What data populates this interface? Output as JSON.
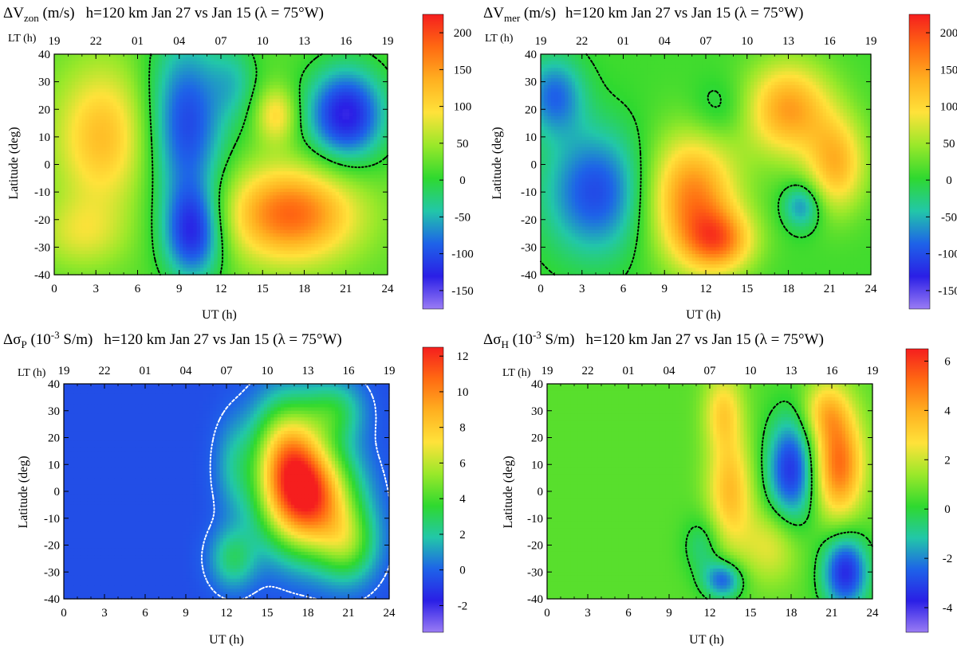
{
  "colors": {
    "colormap": [
      "#9a7cf4",
      "#2a1fe6",
      "#1e63e8",
      "#22c7a8",
      "#2fd92f",
      "#9ae82a",
      "#ffe23a",
      "#ffb020",
      "#ff6a12",
      "#f51e1e"
    ],
    "contour_dark": "#000000",
    "contour_light": "#ffffff"
  },
  "chart_data": [
    {
      "id": "dvzon",
      "type": "heatmap",
      "title": {
        "pre": "ΔV",
        "sub": "zon",
        "post": " (m/s)",
        "rest": "h=120 km    Jan 27 vs Jan 15 (λ = 75°W)"
      },
      "xlabel": "UT (h)",
      "ylabel": "Latitude (deg)",
      "lt_label": "LT (h)",
      "x_ticks": [
        "0",
        "3",
        "6",
        "9",
        "12",
        "15",
        "18",
        "21",
        "24"
      ],
      "y_ticks": [
        "-40",
        "-30",
        "-20",
        "-10",
        "0",
        "10",
        "20",
        "30",
        "40"
      ],
      "lt_ticks": [
        "19",
        "22",
        "01",
        "04",
        "07",
        "10",
        "13",
        "16",
        "19"
      ],
      "xlim": [
        0,
        24
      ],
      "ylim": [
        -40,
        40
      ],
      "colorbar": {
        "range": [
          -175,
          225
        ],
        "ticks": [
          "-150",
          "-100",
          "-50",
          "0",
          "50",
          "100",
          "150",
          "200"
        ],
        "tick_values": [
          -150,
          -100,
          -50,
          0,
          50,
          100,
          150,
          200
        ]
      },
      "contour_style": "dark",
      "background_value": 20,
      "blobs": [
        {
          "ut": 3.5,
          "lat": 10,
          "sx": 2.4,
          "sy": 18,
          "v": 110
        },
        {
          "ut": 2.0,
          "lat": -25,
          "sx": 2.2,
          "sy": 9,
          "v": 60
        },
        {
          "ut": 9.5,
          "lat": 15,
          "sx": 2.0,
          "sy": 22,
          "v": -120
        },
        {
          "ut": 10.0,
          "lat": -25,
          "sx": 1.5,
          "sy": 12,
          "v": -130
        },
        {
          "ut": 17.0,
          "lat": -18,
          "sx": 3.3,
          "sy": 12,
          "v": 170
        },
        {
          "ut": 16.0,
          "lat": 18,
          "sx": 1.0,
          "sy": 7,
          "v": 90
        },
        {
          "ut": 21.0,
          "lat": 18,
          "sx": 2.0,
          "sy": 12,
          "v": -150
        },
        {
          "ut": 13.0,
          "lat": 30,
          "sx": 1.2,
          "sy": 10,
          "v": -40
        }
      ],
      "contour_level": 0
    },
    {
      "id": "dvmer",
      "type": "heatmap",
      "title": {
        "pre": "ΔV",
        "sub": "mer",
        "post": " (m/s)",
        "rest": "h=120 km    Jan 27 vs Jan 15 (λ = 75°W)"
      },
      "xlabel": "UT (h)",
      "ylabel": "Latitude (deg)",
      "lt_label": "LT (h)",
      "x_ticks": [
        "0",
        "3",
        "6",
        "9",
        "12",
        "15",
        "18",
        "21",
        "24"
      ],
      "y_ticks": [
        "-40",
        "-30",
        "-20",
        "-10",
        "0",
        "10",
        "20",
        "30",
        "40"
      ],
      "lt_ticks": [
        "19",
        "22",
        "01",
        "04",
        "07",
        "10",
        "13",
        "16",
        "19"
      ],
      "xlim": [
        0,
        24
      ],
      "ylim": [
        -40,
        40
      ],
      "colorbar": {
        "range": [
          -175,
          225
        ],
        "ticks": [
          "-150",
          "-100",
          "-50",
          "0",
          "50",
          "100",
          "150",
          "200"
        ],
        "tick_values": [
          -150,
          -100,
          -50,
          0,
          50,
          100,
          150,
          200
        ]
      },
      "contour_style": "dark",
      "background_value": 10,
      "blobs": [
        {
          "ut": 4.0,
          "lat": -10,
          "sx": 2.6,
          "sy": 16,
          "v": -110
        },
        {
          "ut": 1.0,
          "lat": 25,
          "sx": 1.5,
          "sy": 10,
          "v": -90
        },
        {
          "ut": 11.0,
          "lat": -12,
          "sx": 2.3,
          "sy": 16,
          "v": 160
        },
        {
          "ut": 13.0,
          "lat": -28,
          "sx": 1.8,
          "sy": 8,
          "v": 130
        },
        {
          "ut": 18.0,
          "lat": 20,
          "sx": 2.2,
          "sy": 12,
          "v": 140
        },
        {
          "ut": 21.5,
          "lat": 0,
          "sx": 1.5,
          "sy": 12,
          "v": 120
        },
        {
          "ut": 19.0,
          "lat": -15,
          "sx": 1.0,
          "sy": 6,
          "v": -80
        },
        {
          "ut": 13.0,
          "lat": 20,
          "sx": 1.5,
          "sy": 8,
          "v": -30
        }
      ],
      "contour_level": 0
    },
    {
      "id": "dsigp",
      "type": "heatmap",
      "title": {
        "pre": "Δσ",
        "sub": "P",
        "post": " (10",
        "sup": "-3",
        "post2": " S/m)",
        "rest": "h=120 km    Jan 27 vs Jan 15 (λ = 75°W)"
      },
      "xlabel": "UT (h)",
      "ylabel": "Latitude (deg)",
      "lt_label": "LT (h)",
      "x_ticks": [
        "0",
        "3",
        "6",
        "9",
        "12",
        "15",
        "18",
        "21",
        "24"
      ],
      "y_ticks": [
        "-40",
        "-30",
        "-20",
        "-10",
        "0",
        "10",
        "20",
        "30",
        "40"
      ],
      "lt_ticks": [
        "19",
        "22",
        "01",
        "04",
        "07",
        "10",
        "13",
        "16",
        "19"
      ],
      "xlim": [
        0,
        24
      ],
      "ylim": [
        -40,
        40
      ],
      "colorbar": {
        "range": [
          -3.5,
          12.5
        ],
        "ticks": [
          "-2",
          "0",
          "2",
          "4",
          "6",
          "8",
          "10",
          "12"
        ],
        "tick_values": [
          -2,
          0,
          2,
          4,
          6,
          8,
          10,
          12
        ]
      },
      "contour_style": "light",
      "background_value": -0.5,
      "blobs": [
        {
          "ut": 18.0,
          "lat": -3,
          "sx": 2.3,
          "sy": 14,
          "v": 11.5
        },
        {
          "ut": 16.5,
          "lat": 15,
          "sx": 1.8,
          "sy": 14,
          "v": 7
        },
        {
          "ut": 21.0,
          "lat": -20,
          "sx": 1.5,
          "sy": 10,
          "v": 4
        },
        {
          "ut": 12.5,
          "lat": -25,
          "sx": 1.2,
          "sy": 8,
          "v": 3
        },
        {
          "ut": 20.0,
          "lat": 30,
          "sx": 1.5,
          "sy": 8,
          "v": 3
        },
        {
          "ut": 12.5,
          "lat": 10,
          "sx": 1.0,
          "sy": 12,
          "v": 1.5
        }
      ],
      "contour_level": 0
    },
    {
      "id": "dsigh",
      "type": "heatmap",
      "title": {
        "pre": "Δσ",
        "sub": "H",
        "post": " (10",
        "sup": "-3",
        "post2": " S/m)",
        "rest": "h=120 km    Jan 27 vs Jan 15 (λ = 75°W)"
      },
      "xlabel": "UT (h)",
      "ylabel": "Latitude (deg)",
      "lt_label": "LT (h)",
      "x_ticks": [
        "0",
        "3",
        "6",
        "9",
        "12",
        "15",
        "18",
        "21",
        "24"
      ],
      "y_ticks": [
        "-40",
        "-30",
        "-20",
        "-10",
        "0",
        "10",
        "20",
        "30",
        "40"
      ],
      "lt_ticks": [
        "19",
        "22",
        "01",
        "04",
        "07",
        "10",
        "13",
        "16",
        "19"
      ],
      "xlim": [
        0,
        24
      ],
      "ylim": [
        -40,
        40
      ],
      "colorbar": {
        "range": [
          -5,
          6.5
        ],
        "ticks": [
          "-4",
          "-2",
          "0",
          "2",
          "4",
          "6"
        ],
        "tick_values": [
          -4,
          -2,
          0,
          2,
          4,
          6
        ]
      },
      "contour_style": "dark",
      "background_value": 0.6,
      "blobs": [
        {
          "ut": 13.5,
          "lat": 0,
          "sx": 1.2,
          "sy": 15,
          "v": 3.2
        },
        {
          "ut": 13.0,
          "lat": 30,
          "sx": 1.0,
          "sy": 10,
          "v": 2.5
        },
        {
          "ut": 18.0,
          "lat": 8,
          "sx": 1.3,
          "sy": 14,
          "v": -3.8
        },
        {
          "ut": 21.5,
          "lat": 10,
          "sx": 1.3,
          "sy": 14,
          "v": 4.8
        },
        {
          "ut": 20.5,
          "lat": 30,
          "sx": 1.2,
          "sy": 8,
          "v": 2.5
        },
        {
          "ut": 22.0,
          "lat": -30,
          "sx": 1.2,
          "sy": 10,
          "v": -4
        },
        {
          "ut": 13.0,
          "lat": -33,
          "sx": 1.0,
          "sy": 5,
          "v": -3
        },
        {
          "ut": 16.5,
          "lat": -20,
          "sx": 1.5,
          "sy": 10,
          "v": 2
        },
        {
          "ut": 11.5,
          "lat": -20,
          "sx": 1.0,
          "sy": 8,
          "v": -1.2
        }
      ],
      "contour_level": 0
    }
  ]
}
